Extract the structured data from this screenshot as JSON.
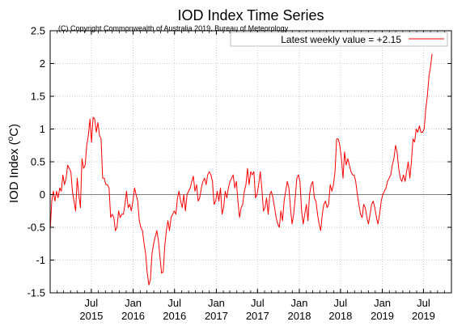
{
  "chart_data": {
    "type": "line",
    "title": "IOD Index Time Series",
    "subtitle": "(C) Copyright Commonwealth of Australia 2019, Bureau of Meteorology",
    "ylabel_main": "IOD Index (",
    "ylabel_sup": "o",
    "ylabel_unit": "C)",
    "xlabel": "",
    "ylim": [
      -1.5,
      2.5
    ],
    "yticks": [
      "-1.5",
      "-1",
      "-0.5",
      "0",
      "0.5",
      "1",
      "1.5",
      "2",
      "2.5"
    ],
    "xlim": [
      "2015-01-01",
      "2019-11-01"
    ],
    "xticks": [
      {
        "month": "Jul",
        "year": "2015",
        "date": "2015-07-01"
      },
      {
        "month": "Jan",
        "year": "2016",
        "date": "2016-01-01"
      },
      {
        "month": "Jul",
        "year": "2016",
        "date": "2016-07-01"
      },
      {
        "month": "Jan",
        "year": "2017",
        "date": "2017-01-01"
      },
      {
        "month": "Jul",
        "year": "2017",
        "date": "2017-07-01"
      },
      {
        "month": "Jan",
        "year": "2018",
        "date": "2018-01-01"
      },
      {
        "month": "Jul",
        "year": "2018",
        "date": "2018-07-01"
      },
      {
        "month": "Jan",
        "year": "2019",
        "date": "2019-01-01"
      },
      {
        "month": "Jul",
        "year": "2019",
        "date": "2019-07-01"
      }
    ],
    "grid": true,
    "zero_line": true,
    "legend": {
      "position": "top-right",
      "label": "Latest weekly value = +2.15"
    },
    "series": [
      {
        "color": "#ff0000",
        "points": [
          [
            "2015-01-01",
            -0.55
          ],
          [
            "2015-01-08",
            -0.1
          ],
          [
            "2015-01-15",
            0.05
          ],
          [
            "2015-01-22",
            -0.1
          ],
          [
            "2015-01-29",
            0.05
          ],
          [
            "2015-02-05",
            -0.05
          ],
          [
            "2015-02-12",
            0.1
          ],
          [
            "2015-02-19",
            0.05
          ],
          [
            "2015-02-26",
            0.3
          ],
          [
            "2015-03-05",
            0.15
          ],
          [
            "2015-03-12",
            0.25
          ],
          [
            "2015-03-19",
            0.45
          ],
          [
            "2015-03-26",
            0.4
          ],
          [
            "2015-04-02",
            0.35
          ],
          [
            "2015-04-09",
            0.05
          ],
          [
            "2015-04-16",
            -0.1
          ],
          [
            "2015-04-23",
            -0.25
          ],
          [
            "2015-04-30",
            0.25
          ],
          [
            "2015-05-07",
            0.0
          ],
          [
            "2015-05-14",
            -0.2
          ],
          [
            "2015-05-21",
            0.55
          ],
          [
            "2015-05-28",
            0.4
          ],
          [
            "2015-06-04",
            0.45
          ],
          [
            "2015-06-11",
            0.75
          ],
          [
            "2015-06-18",
            0.9
          ],
          [
            "2015-06-25",
            1.15
          ],
          [
            "2015-07-02",
            0.8
          ],
          [
            "2015-07-09",
            1.18
          ],
          [
            "2015-07-16",
            1.15
          ],
          [
            "2015-07-23",
            0.95
          ],
          [
            "2015-07-30",
            1.1
          ],
          [
            "2015-08-06",
            0.9
          ],
          [
            "2015-08-13",
            0.85
          ],
          [
            "2015-08-20",
            0.25
          ],
          [
            "2015-08-27",
            0.25
          ],
          [
            "2015-09-03",
            0.15
          ],
          [
            "2015-09-10",
            0.15
          ],
          [
            "2015-09-17",
            0.1
          ],
          [
            "2015-09-24",
            -0.35
          ],
          [
            "2015-10-01",
            -0.3
          ],
          [
            "2015-10-08",
            -0.35
          ],
          [
            "2015-10-15",
            -0.55
          ],
          [
            "2015-10-22",
            -0.5
          ],
          [
            "2015-10-29",
            -0.25
          ],
          [
            "2015-11-05",
            -0.35
          ],
          [
            "2015-11-12",
            -0.3
          ],
          [
            "2015-11-19",
            -0.3
          ],
          [
            "2015-11-26",
            -0.15
          ],
          [
            "2015-12-03",
            0.05
          ],
          [
            "2015-12-10",
            -0.2
          ],
          [
            "2015-12-17",
            -0.15
          ],
          [
            "2015-12-24",
            -0.25
          ],
          [
            "2015-12-31",
            -0.1
          ],
          [
            "2016-01-07",
            0.1
          ],
          [
            "2016-01-14",
            0.0
          ],
          [
            "2016-01-21",
            -0.1
          ],
          [
            "2016-01-28",
            -0.4
          ],
          [
            "2016-02-04",
            -0.5
          ],
          [
            "2016-02-11",
            -0.55
          ],
          [
            "2016-02-18",
            -0.75
          ],
          [
            "2016-02-25",
            -0.9
          ],
          [
            "2016-03-03",
            -1.2
          ],
          [
            "2016-03-10",
            -1.38
          ],
          [
            "2016-03-17",
            -1.3
          ],
          [
            "2016-03-24",
            -0.9
          ],
          [
            "2016-03-31",
            -0.75
          ],
          [
            "2016-04-07",
            -0.65
          ],
          [
            "2016-04-14",
            -0.55
          ],
          [
            "2016-04-21",
            -0.7
          ],
          [
            "2016-04-28",
            -0.95
          ],
          [
            "2016-05-05",
            -1.2
          ],
          [
            "2016-05-12",
            -1.18
          ],
          [
            "2016-05-19",
            -0.8
          ],
          [
            "2016-05-26",
            -0.55
          ],
          [
            "2016-06-02",
            -0.4
          ],
          [
            "2016-06-09",
            -0.55
          ],
          [
            "2016-06-16",
            -0.35
          ],
          [
            "2016-06-23",
            -0.3
          ],
          [
            "2016-06-30",
            -0.25
          ],
          [
            "2016-07-07",
            -0.3
          ],
          [
            "2016-07-14",
            -0.05
          ],
          [
            "2016-07-21",
            0.05
          ],
          [
            "2016-07-28",
            -0.1
          ],
          [
            "2016-08-04",
            -0.2
          ],
          [
            "2016-08-11",
            0.0
          ],
          [
            "2016-08-18",
            -0.25
          ],
          [
            "2016-08-25",
            0.0
          ],
          [
            "2016-09-01",
            0.05
          ],
          [
            "2016-09-08",
            0.1
          ],
          [
            "2016-09-15",
            0.2
          ],
          [
            "2016-09-22",
            0.28
          ],
          [
            "2016-09-29",
            0.05
          ],
          [
            "2016-10-06",
            0.15
          ],
          [
            "2016-10-13",
            -0.1
          ],
          [
            "2016-10-20",
            -0.05
          ],
          [
            "2016-10-27",
            0.1
          ],
          [
            "2016-11-03",
            0.2
          ],
          [
            "2016-11-10",
            0.25
          ],
          [
            "2016-11-17",
            0.15
          ],
          [
            "2016-11-24",
            0.3
          ],
          [
            "2016-12-01",
            0.35
          ],
          [
            "2016-12-08",
            0.3
          ],
          [
            "2016-12-15",
            0.2
          ],
          [
            "2016-12-22",
            -0.15
          ],
          [
            "2016-12-29",
            -0.1
          ],
          [
            "2017-01-05",
            0.05
          ],
          [
            "2017-01-12",
            -0.1
          ],
          [
            "2017-01-19",
            0.1
          ],
          [
            "2017-01-26",
            -0.3
          ],
          [
            "2017-02-02",
            -0.2
          ],
          [
            "2017-02-09",
            0.05
          ],
          [
            "2017-02-16",
            -0.05
          ],
          [
            "2017-02-23",
            0.1
          ],
          [
            "2017-03-02",
            0.2
          ],
          [
            "2017-03-09",
            0.25
          ],
          [
            "2017-03-16",
            0.3
          ],
          [
            "2017-03-23",
            0.1
          ],
          [
            "2017-03-30",
            0.2
          ],
          [
            "2017-04-06",
            -0.1
          ],
          [
            "2017-04-13",
            -0.35
          ],
          [
            "2017-04-20",
            -0.2
          ],
          [
            "2017-04-27",
            -0.15
          ],
          [
            "2017-05-04",
            0.05
          ],
          [
            "2017-05-11",
            0.15
          ],
          [
            "2017-05-18",
            0.4
          ],
          [
            "2017-05-25",
            0.15
          ],
          [
            "2017-06-01",
            0.35
          ],
          [
            "2017-06-08",
            0.3
          ],
          [
            "2017-06-15",
            0.35
          ],
          [
            "2017-06-22",
            -0.05
          ],
          [
            "2017-06-29",
            0.0
          ],
          [
            "2017-07-06",
            0.15
          ],
          [
            "2017-07-13",
            0.35
          ],
          [
            "2017-07-20",
            0.1
          ],
          [
            "2017-07-27",
            -0.25
          ],
          [
            "2017-08-03",
            -0.2
          ],
          [
            "2017-08-10",
            -0.05
          ],
          [
            "2017-08-17",
            -0.3
          ],
          [
            "2017-08-24",
            0.0
          ],
          [
            "2017-08-31",
            0.05
          ],
          [
            "2017-09-07",
            -0.05
          ],
          [
            "2017-09-14",
            -0.2
          ],
          [
            "2017-09-21",
            -0.35
          ],
          [
            "2017-09-28",
            -0.45
          ],
          [
            "2017-10-05",
            -0.5
          ],
          [
            "2017-10-12",
            -0.25
          ],
          [
            "2017-10-19",
            -0.4
          ],
          [
            "2017-10-26",
            -0.1
          ],
          [
            "2017-11-02",
            0.05
          ],
          [
            "2017-11-09",
            0.2
          ],
          [
            "2017-11-16",
            0.1
          ],
          [
            "2017-11-23",
            -0.2
          ],
          [
            "2017-11-30",
            -0.45
          ],
          [
            "2017-12-07",
            -0.3
          ],
          [
            "2017-12-14",
            -0.05
          ],
          [
            "2017-12-21",
            0.25
          ],
          [
            "2017-12-28",
            0.3
          ],
          [
            "2018-01-04",
            0.2
          ],
          [
            "2018-01-11",
            -0.25
          ],
          [
            "2018-01-18",
            -0.45
          ],
          [
            "2018-01-25",
            -0.3
          ],
          [
            "2018-02-01",
            -0.15
          ],
          [
            "2018-02-08",
            -0.4
          ],
          [
            "2018-02-15",
            0.0
          ],
          [
            "2018-02-22",
            0.15
          ],
          [
            "2018-03-01",
            0.2
          ],
          [
            "2018-03-08",
            -0.05
          ],
          [
            "2018-03-15",
            -0.1
          ],
          [
            "2018-03-22",
            -0.3
          ],
          [
            "2018-03-29",
            -0.45
          ],
          [
            "2018-04-05",
            -0.55
          ],
          [
            "2018-04-12",
            -0.3
          ],
          [
            "2018-04-19",
            -0.15
          ],
          [
            "2018-04-26",
            -0.1
          ],
          [
            "2018-05-03",
            -0.2
          ],
          [
            "2018-05-10",
            -0.15
          ],
          [
            "2018-05-17",
            0.15
          ],
          [
            "2018-05-24",
            0.05
          ],
          [
            "2018-05-31",
            0.15
          ],
          [
            "2018-06-07",
            0.35
          ],
          [
            "2018-06-14",
            0.85
          ],
          [
            "2018-06-21",
            0.85
          ],
          [
            "2018-06-28",
            0.75
          ],
          [
            "2018-07-05",
            0.55
          ],
          [
            "2018-07-12",
            0.25
          ],
          [
            "2018-07-19",
            0.65
          ],
          [
            "2018-07-26",
            0.45
          ],
          [
            "2018-08-02",
            0.55
          ],
          [
            "2018-08-09",
            0.45
          ],
          [
            "2018-08-16",
            0.35
          ],
          [
            "2018-08-23",
            0.3
          ],
          [
            "2018-08-30",
            0.3
          ],
          [
            "2018-09-06",
            0.2
          ],
          [
            "2018-09-13",
            0.0
          ],
          [
            "2018-09-20",
            -0.15
          ],
          [
            "2018-09-27",
            -0.3
          ],
          [
            "2018-10-04",
            -0.35
          ],
          [
            "2018-10-11",
            -0.15
          ],
          [
            "2018-10-18",
            -0.2
          ],
          [
            "2018-10-25",
            -0.35
          ],
          [
            "2018-11-01",
            -0.45
          ],
          [
            "2018-11-08",
            -0.3
          ],
          [
            "2018-11-15",
            -0.15
          ],
          [
            "2018-11-22",
            -0.1
          ],
          [
            "2018-11-29",
            -0.2
          ],
          [
            "2018-12-06",
            -0.35
          ],
          [
            "2018-12-13",
            -0.45
          ],
          [
            "2018-12-20",
            -0.3
          ],
          [
            "2018-12-27",
            -0.1
          ],
          [
            "2019-01-03",
            0.0
          ],
          [
            "2019-01-10",
            0.05
          ],
          [
            "2019-01-17",
            0.1
          ],
          [
            "2019-01-24",
            0.2
          ],
          [
            "2019-01-31",
            0.25
          ],
          [
            "2019-02-07",
            0.3
          ],
          [
            "2019-02-14",
            0.45
          ],
          [
            "2019-02-21",
            0.55
          ],
          [
            "2019-02-28",
            0.75
          ],
          [
            "2019-03-07",
            0.65
          ],
          [
            "2019-03-14",
            0.4
          ],
          [
            "2019-03-21",
            0.25
          ],
          [
            "2019-03-28",
            0.2
          ],
          [
            "2019-04-04",
            0.3
          ],
          [
            "2019-04-11",
            0.2
          ],
          [
            "2019-04-18",
            0.35
          ],
          [
            "2019-04-25",
            0.5
          ],
          [
            "2019-05-02",
            0.25
          ],
          [
            "2019-05-09",
            0.5
          ],
          [
            "2019-05-16",
            0.85
          ],
          [
            "2019-05-23",
            0.8
          ],
          [
            "2019-05-30",
            1.0
          ],
          [
            "2019-06-06",
            0.95
          ],
          [
            "2019-06-13",
            1.05
          ],
          [
            "2019-06-20",
            0.95
          ],
          [
            "2019-06-27",
            0.95
          ],
          [
            "2019-07-04",
            1.0
          ],
          [
            "2019-07-11",
            1.3
          ],
          [
            "2019-07-18",
            1.5
          ],
          [
            "2019-07-25",
            1.8
          ],
          [
            "2019-08-01",
            1.95
          ],
          [
            "2019-08-08",
            2.15
          ]
        ]
      }
    ]
  }
}
